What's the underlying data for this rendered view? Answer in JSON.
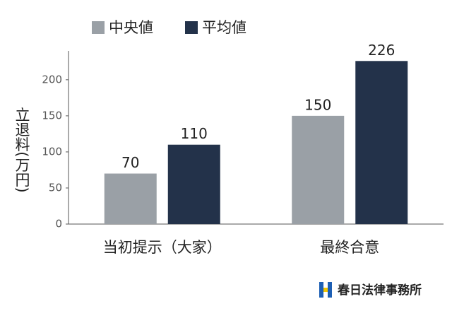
{
  "chart_data": {
    "type": "bar",
    "y_label": "立退料(万円)",
    "categories": [
      "当初提示（大家）",
      "最終合意"
    ],
    "series": [
      {
        "name": "中央値",
        "color": "#9aa0a6",
        "values": [
          70,
          150
        ]
      },
      {
        "name": "平均値",
        "color": "#23324a",
        "values": [
          110,
          226
        ]
      }
    ],
    "ylim": [
      0,
      240
    ],
    "yticks": [
      0,
      50,
      100,
      150,
      200
    ],
    "grid": false,
    "legend": "top"
  },
  "brand": "春日法律事務所"
}
